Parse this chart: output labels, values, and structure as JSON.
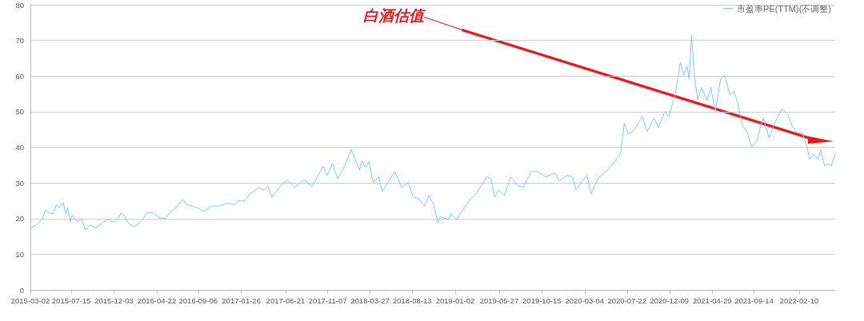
{
  "chart_data": {
    "type": "line",
    "annotations": [
      "白酒估值"
    ],
    "x": [
      "2015-03-02",
      "2015-03-23",
      "2015-04-10",
      "2015-04-21",
      "2015-05-03",
      "2015-05-16",
      "2015-05-27",
      "2015-06-05",
      "2015-06-18",
      "2015-06-27",
      "2015-07-03",
      "2015-07-12",
      "2015-07-18",
      "2015-08-04",
      "2015-08-17",
      "2015-09-01",
      "2015-09-13",
      "2015-10-05",
      "2015-10-30",
      "2015-11-13",
      "2015-12-01",
      "2015-12-14",
      "2015-12-27",
      "2016-01-06",
      "2016-01-19",
      "2016-02-06",
      "2016-02-28",
      "2016-03-06",
      "2016-03-19",
      "2016-04-09",
      "2016-04-28",
      "2016-05-20",
      "2016-06-08",
      "2016-06-25",
      "2016-07-17",
      "2016-07-30",
      "2016-08-17",
      "2016-09-09",
      "2016-09-26",
      "2016-10-18",
      "2016-11-14",
      "2016-12-10",
      "2017-01-06",
      "2017-01-15",
      "2017-02-06",
      "2017-02-24",
      "2017-03-24",
      "2017-04-11",
      "2017-04-24",
      "2017-05-07",
      "2017-05-25",
      "2017-06-12",
      "2017-06-28",
      "2017-07-21",
      "2017-08-21",
      "2017-09-17",
      "2017-10-23",
      "2017-11-05",
      "2017-11-23",
      "2017-12-10",
      "2018-01-02",
      "2018-01-24",
      "2018-02-20",
      "2018-02-28",
      "2018-03-12",
      "2018-03-23",
      "2018-04-06",
      "2018-04-25",
      "2018-05-06",
      "2018-05-25",
      "2018-06-17",
      "2018-07-09",
      "2018-07-30",
      "2018-08-16",
      "2018-09-05",
      "2018-09-22",
      "2018-10-07",
      "2018-10-23",
      "2018-11-06",
      "2018-11-14",
      "2018-12-11",
      "2018-12-19",
      "2019-01-06",
      "2019-02-02",
      "2019-02-20",
      "2019-03-07",
      "2019-03-25",
      "2019-04-16",
      "2019-04-29",
      "2019-05-12",
      "2019-05-25",
      "2019-06-13",
      "2019-07-04",
      "2019-07-26",
      "2019-08-13",
      "2019-09-10",
      "2019-10-01",
      "2019-10-27",
      "2019-11-28",
      "2019-12-10",
      "2020-01-07",
      "2020-01-24",
      "2020-02-05",
      "2020-02-25",
      "2020-03-12",
      "2020-03-25",
      "2020-04-17",
      "2020-05-13",
      "2020-06-09",
      "2020-06-30",
      "2020-07-13",
      "2020-07-27",
      "2020-08-14",
      "2020-09-10",
      "2020-09-27",
      "2020-10-19",
      "2020-11-02",
      "2020-11-24",
      "2020-12-07",
      "2020-12-28",
      "2021-01-14",
      "2021-01-25",
      "2021-02-05",
      "2021-02-12",
      "2021-02-20",
      "2021-03-01",
      "2021-03-12",
      "2021-03-25",
      "2021-04-12",
      "2021-04-25",
      "2021-05-09",
      "2021-05-27",
      "2021-06-09",
      "2021-06-27",
      "2021-07-10",
      "2021-07-23",
      "2021-08-06",
      "2021-08-23",
      "2021-09-06",
      "2021-09-23",
      "2021-10-07",
      "2021-10-15",
      "2021-11-03",
      "2021-11-20",
      "2021-12-16",
      "2022-01-03",
      "2022-01-16",
      "2022-02-03",
      "2022-02-21",
      "2022-03-08",
      "2022-03-17",
      "2022-03-30",
      "2022-04-13",
      "2022-04-22",
      "2022-05-05",
      "2022-05-18",
      "2022-05-27",
      "2022-06-09"
    ],
    "series": [
      {
        "name": "市盈率PE(TTM)(不调整)",
        "color": "#7ec8f5",
        "values": [
          17.2,
          18.3,
          19.8,
          22.4,
          21.6,
          21.3,
          23.9,
          23.1,
          24.5,
          21.3,
          23.1,
          19.0,
          20.9,
          19.0,
          20.0,
          16.8,
          18.1,
          17.5,
          19.0,
          19.8,
          19.0,
          19.8,
          21.6,
          20.9,
          18.7,
          17.7,
          19.0,
          19.6,
          21.6,
          21.8,
          20.3,
          20.0,
          22.0,
          23.1,
          25.4,
          24.0,
          23.5,
          22.8,
          22.0,
          23.5,
          23.5,
          24.3,
          23.9,
          25.0,
          25.0,
          26.9,
          28.7,
          28.0,
          29.1,
          26.1,
          28.0,
          29.9,
          30.7,
          28.7,
          31.0,
          29.0,
          34.7,
          32.1,
          35.4,
          31.2,
          34.7,
          39.4,
          33.6,
          36.2,
          34.3,
          36.0,
          30.2,
          31.7,
          27.6,
          30.2,
          33.2,
          28.7,
          30.2,
          26.1,
          25.4,
          23.5,
          26.5,
          23.9,
          18.7,
          20.5,
          19.8,
          21.3,
          19.8,
          23.1,
          25.4,
          26.5,
          28.7,
          31.7,
          31.3,
          26.1,
          28.0,
          26.5,
          31.7,
          29.5,
          28.7,
          33.2,
          33.2,
          31.7,
          32.8,
          30.6,
          32.1,
          31.7,
          28.0,
          30.6,
          32.1,
          26.9,
          31.3,
          33.2,
          35.8,
          38.1,
          46.7,
          43.7,
          44.8,
          48.6,
          44.5,
          48.2,
          45.6,
          50.1,
          48.6,
          54.9,
          63.9,
          60.2,
          62.8,
          59.1,
          71.4,
          60.2,
          53.4,
          56.8,
          53.1,
          56.8,
          50.1,
          59.1,
          60.2,
          54.6,
          55.7,
          52.3,
          46.3,
          44.1,
          40.0,
          41.8,
          46.3,
          48.2,
          42.6,
          46.7,
          50.8,
          49.3,
          46.3,
          44.1,
          44.1,
          40.0,
          36.6,
          38.1,
          36.6,
          39.2,
          34.7,
          35.5,
          34.7,
          38.2
        ]
      }
    ],
    "xlim": [
      "2015-03-02",
      "2022-06-09"
    ],
    "xticks": [
      "2015-03-02",
      "2015-07-15",
      "2015-12-03",
      "2016-04-22",
      "2016-09-06",
      "2017-01-26",
      "2017-06-21",
      "2017-11-07",
      "2018-03-27",
      "2018-08-13",
      "2019-01-02",
      "2019-05-27",
      "2019-10-15",
      "2020-03-04",
      "2020-07-22",
      "2020-12-09",
      "2021-04-29",
      "2021-09-14",
      "2022-02-10"
    ],
    "ylim": [
      0,
      80
    ],
    "yticks": [
      0,
      10,
      20,
      30,
      40,
      50,
      60,
      70,
      80
    ],
    "grid": "y",
    "legend": "top right",
    "marker": "none",
    "line_style": "solid"
  }
}
